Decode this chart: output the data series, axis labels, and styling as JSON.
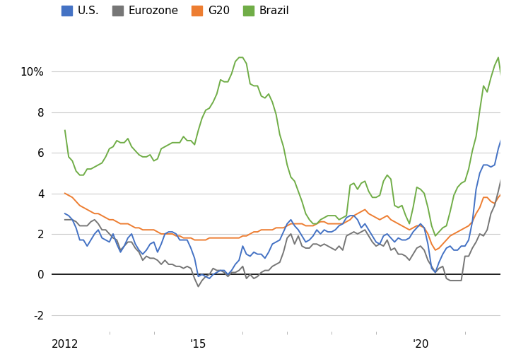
{
  "colors": {
    "US": "#4472C4",
    "Eurozone": "#767676",
    "G20": "#ED7D31",
    "Brazil": "#70AD47"
  },
  "ylim": [
    -2.8,
    11.2
  ],
  "xlim_start": 2011.7,
  "xlim_end": 2021.8,
  "background": "#ffffff",
  "grid_color": "#cccccc",
  "us_vals": [
    3.0,
    2.9,
    2.7,
    2.3,
    1.7,
    1.7,
    1.4,
    1.7,
    2.0,
    2.2,
    1.8,
    1.7,
    1.6,
    2.0,
    1.5,
    1.1,
    1.4,
    1.8,
    2.0,
    1.5,
    1.2,
    1.0,
    1.2,
    1.5,
    1.6,
    1.1,
    1.5,
    2.0,
    2.1,
    2.1,
    2.0,
    1.7,
    1.7,
    1.7,
    1.3,
    0.8,
    -0.1,
    0.0,
    -0.1,
    -0.2,
    0.0,
    0.1,
    0.2,
    0.2,
    0.0,
    0.2,
    0.5,
    0.7,
    1.4,
    1.0,
    0.9,
    1.1,
    1.0,
    1.0,
    0.8,
    1.1,
    1.5,
    1.6,
    1.7,
    2.1,
    2.5,
    2.7,
    2.4,
    2.2,
    1.9,
    1.6,
    1.7,
    1.9,
    2.2,
    2.0,
    2.2,
    2.1,
    2.1,
    2.2,
    2.4,
    2.5,
    2.8,
    2.9,
    2.9,
    2.7,
    2.3,
    2.5,
    2.2,
    1.9,
    1.6,
    1.5,
    1.9,
    2.0,
    1.8,
    1.6,
    1.8,
    1.7,
    1.7,
    1.8,
    2.1,
    2.3,
    2.5,
    2.3,
    1.5,
    0.3,
    0.1,
    0.6,
    1.0,
    1.3,
    1.4,
    1.2,
    1.2,
    1.4,
    1.4,
    1.7,
    2.6,
    4.2,
    5.0,
    5.4,
    5.4,
    5.3,
    5.4,
    6.2,
    6.8,
    7.0
  ],
  "ez_vals": [
    2.7,
    2.7,
    2.7,
    2.6,
    2.4,
    2.4,
    2.4,
    2.6,
    2.7,
    2.5,
    2.2,
    2.2,
    2.0,
    1.8,
    1.7,
    1.2,
    1.4,
    1.6,
    1.6,
    1.3,
    1.1,
    0.7,
    0.9,
    0.8,
    0.8,
    0.7,
    0.5,
    0.7,
    0.5,
    0.5,
    0.4,
    0.4,
    0.3,
    0.4,
    0.3,
    -0.2,
    -0.6,
    -0.3,
    -0.1,
    0.0,
    0.3,
    0.2,
    0.2,
    0.1,
    -0.1,
    0.1,
    0.1,
    0.2,
    0.4,
    -0.2,
    0.0,
    -0.2,
    -0.1,
    0.1,
    0.2,
    0.2,
    0.4,
    0.5,
    0.6,
    1.1,
    1.8,
    2.0,
    1.5,
    1.9,
    1.4,
    1.3,
    1.3,
    1.5,
    1.5,
    1.4,
    1.5,
    1.4,
    1.3,
    1.2,
    1.4,
    1.2,
    1.9,
    2.0,
    2.1,
    2.0,
    2.1,
    2.2,
    1.9,
    1.6,
    1.4,
    1.5,
    1.4,
    1.7,
    1.2,
    1.3,
    1.0,
    1.0,
    0.9,
    0.7,
    1.0,
    1.3,
    1.4,
    1.2,
    0.7,
    0.4,
    0.1,
    0.3,
    0.4,
    -0.2,
    -0.3,
    -0.3,
    -0.3,
    -0.3,
    0.9,
    0.9,
    1.3,
    1.6,
    2.0,
    1.9,
    2.2,
    3.0,
    3.4,
    4.1,
    4.9,
    5.0
  ],
  "g20_vals": [
    4.0,
    3.9,
    3.8,
    3.6,
    3.4,
    3.3,
    3.2,
    3.1,
    3.0,
    3.0,
    2.9,
    2.8,
    2.7,
    2.7,
    2.6,
    2.5,
    2.5,
    2.5,
    2.4,
    2.3,
    2.3,
    2.2,
    2.2,
    2.2,
    2.2,
    2.1,
    2.0,
    2.0,
    2.0,
    2.0,
    1.9,
    1.9,
    1.8,
    1.8,
    1.8,
    1.7,
    1.7,
    1.7,
    1.7,
    1.8,
    1.8,
    1.8,
    1.8,
    1.8,
    1.8,
    1.8,
    1.8,
    1.8,
    1.9,
    1.9,
    2.0,
    2.1,
    2.1,
    2.2,
    2.2,
    2.2,
    2.2,
    2.3,
    2.3,
    2.3,
    2.4,
    2.5,
    2.5,
    2.5,
    2.5,
    2.4,
    2.4,
    2.4,
    2.5,
    2.6,
    2.6,
    2.5,
    2.5,
    2.5,
    2.5,
    2.5,
    2.6,
    2.7,
    2.9,
    3.0,
    3.1,
    3.2,
    3.0,
    2.9,
    2.8,
    2.7,
    2.8,
    2.9,
    2.7,
    2.6,
    2.5,
    2.4,
    2.3,
    2.2,
    2.3,
    2.4,
    2.4,
    2.3,
    2.0,
    1.5,
    1.2,
    1.3,
    1.5,
    1.7,
    1.9,
    2.0,
    2.1,
    2.2,
    2.3,
    2.4,
    2.6,
    3.0,
    3.3,
    3.8,
    3.8,
    3.6,
    3.5,
    3.8,
    4.0,
    4.1
  ],
  "br_vals": [
    7.1,
    5.8,
    5.6,
    5.1,
    4.9,
    4.9,
    5.2,
    5.2,
    5.3,
    5.4,
    5.5,
    5.8,
    6.2,
    6.3,
    6.6,
    6.5,
    6.5,
    6.7,
    6.3,
    6.1,
    5.9,
    5.8,
    5.8,
    5.9,
    5.6,
    5.7,
    6.2,
    6.3,
    6.4,
    6.5,
    6.5,
    6.5,
    6.8,
    6.6,
    6.6,
    6.4,
    7.1,
    7.7,
    8.1,
    8.2,
    8.5,
    8.9,
    9.6,
    9.5,
    9.5,
    9.9,
    10.5,
    10.7,
    10.7,
    10.4,
    9.4,
    9.3,
    9.3,
    8.8,
    8.7,
    8.9,
    8.5,
    7.9,
    6.9,
    6.3,
    5.4,
    4.8,
    4.6,
    4.1,
    3.6,
    3.0,
    2.7,
    2.5,
    2.5,
    2.7,
    2.8,
    2.9,
    2.9,
    2.9,
    2.7,
    2.8,
    2.9,
    4.4,
    4.5,
    4.2,
    4.5,
    4.6,
    4.1,
    3.8,
    3.8,
    3.9,
    4.6,
    4.9,
    4.7,
    3.4,
    3.3,
    3.4,
    2.9,
    2.5,
    3.3,
    4.3,
    4.2,
    4.0,
    3.3,
    2.4,
    1.9,
    2.1,
    2.3,
    2.4,
    3.1,
    3.9,
    4.3,
    4.5,
    4.6,
    5.2,
    6.1,
    6.8,
    8.1,
    9.3,
    9.0,
    9.7,
    10.3,
    10.7,
    9.5,
    9.0
  ]
}
